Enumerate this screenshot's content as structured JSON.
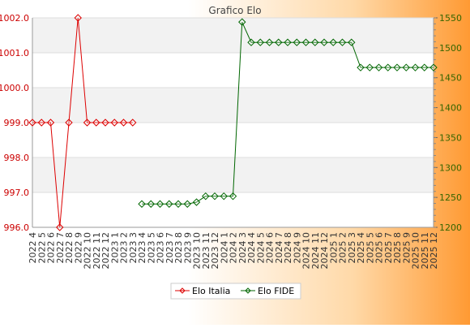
{
  "chart_data": {
    "type": "line",
    "title": "Grafico Elo",
    "categories": [
      "2022 4",
      "2022 5",
      "2022 6",
      "2022 7",
      "2022 8",
      "2022 9",
      "2022 10",
      "2022 11",
      "2022 12",
      "2023 1",
      "2023 2",
      "2023 3",
      "2023 4",
      "2023 5",
      "2023 6",
      "2023 7",
      "2023 8",
      "2023 9",
      "2023 10",
      "2023 11",
      "2023 12",
      "2024 1",
      "2024 2",
      "2024 3",
      "2024 4",
      "2024 5",
      "2024 6",
      "2024 7",
      "2024 8",
      "2024 9",
      "2024 10",
      "2024 11",
      "2024 12",
      "2025 1",
      "2025 2",
      "2025 3",
      "2025 4",
      "2025 5",
      "2025 6",
      "2025 7",
      "2025 8",
      "2025 9",
      "2025 10",
      "2025 11",
      "2025 12"
    ],
    "series": [
      {
        "name": "Elo Italia",
        "axis": "left",
        "color": "#dd0000",
        "values": [
          999.0,
          999.0,
          999.0,
          996.0,
          999.0,
          1002.0,
          999.0,
          999.0,
          999.0,
          999.0,
          999.0,
          999.0,
          null,
          null,
          null,
          null,
          null,
          null,
          null,
          null,
          null,
          null,
          null,
          null,
          null,
          null,
          null,
          null,
          null,
          null,
          null,
          null,
          null,
          null,
          null,
          null,
          null,
          null,
          null,
          null,
          null,
          null,
          null,
          null,
          null
        ]
      },
      {
        "name": "Elo FIDE",
        "axis": "right",
        "color": "#006600",
        "values": [
          null,
          null,
          null,
          null,
          null,
          null,
          null,
          null,
          null,
          null,
          null,
          null,
          1239,
          1239,
          1239,
          1239,
          1239,
          1239,
          1242,
          1252,
          1252,
          1252,
          1252,
          1543,
          1509,
          1509,
          1509,
          1509,
          1509,
          1509,
          1509,
          1509,
          1509,
          1509,
          1509,
          1509,
          1467,
          1467,
          1467,
          1467,
          1467,
          1467,
          1467,
          1467,
          1467
        ]
      }
    ],
    "y_left": {
      "min": 996.0,
      "max": 1002.0,
      "ticks": [
        "996.0",
        "997.0",
        "998.0",
        "999.0",
        "1000.0",
        "1001.0",
        "1002.0"
      ],
      "color": "#cc0000"
    },
    "y_right": {
      "min": 1200,
      "max": 1550,
      "ticks": [
        "1200",
        "1250",
        "1300",
        "1350",
        "1400",
        "1450",
        "1500",
        "1550"
      ],
      "color": "#336600"
    },
    "grid": true,
    "legend_position": "bottom"
  }
}
